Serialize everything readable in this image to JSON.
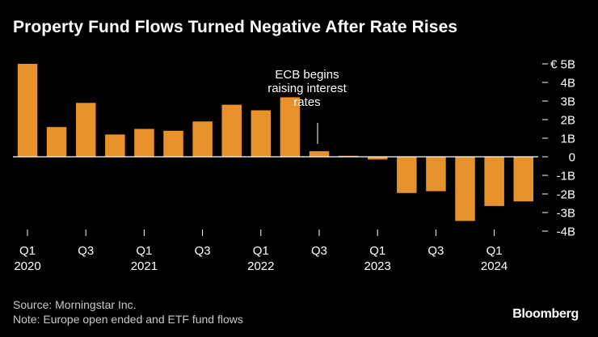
{
  "title": "Property Fund Flows Turned Negative After Rate Rises",
  "source": "Source: Morningstar Inc.",
  "note": "Note: Europe open ended and ETF fund flows",
  "logo": "Bloomberg",
  "colors": {
    "bar": "#e8912a",
    "background": "#000000",
    "text": "#ffffff",
    "zero_line": "#ffffff",
    "tick": "#ffffff"
  },
  "chart_data": {
    "type": "bar",
    "title": "Property Fund Flows Turned Negative After Rate Rises",
    "ylabel": "",
    "xlabel": "",
    "unit": "€ billions",
    "ylim": [
      -4,
      5
    ],
    "yticks": [
      5,
      4,
      3,
      2,
      1,
      0,
      -1,
      -2,
      -3,
      -4
    ],
    "ytick_labels": [
      "€ 5B",
      "4B",
      "3B",
      "2B",
      "1B",
      "0",
      "-1B",
      "-2B",
      "-3B",
      "-4B"
    ],
    "categories": [
      "Q1 2020",
      "Q2 2020",
      "Q3 2020",
      "Q4 2020",
      "Q1 2021",
      "Q2 2021",
      "Q3 2021",
      "Q4 2021",
      "Q1 2022",
      "Q2 2022",
      "Q3 2022",
      "Q4 2022",
      "Q1 2023",
      "Q2 2023",
      "Q3 2023",
      "Q4 2023",
      "Q1 2024",
      "Q2 2024"
    ],
    "values": [
      5.0,
      1.6,
      2.9,
      1.2,
      1.5,
      1.4,
      1.9,
      2.8,
      2.5,
      3.2,
      0.3,
      0.05,
      -0.15,
      -1.95,
      -1.85,
      -3.45,
      -2.65,
      -2.4
    ],
    "x_tick_labels": [
      {
        "index": 0,
        "line1": "Q1",
        "line2": "2020"
      },
      {
        "index": 2,
        "line1": "Q3",
        "line2": ""
      },
      {
        "index": 4,
        "line1": "Q1",
        "line2": "2021"
      },
      {
        "index": 6,
        "line1": "Q3",
        "line2": ""
      },
      {
        "index": 8,
        "line1": "Q1",
        "line2": "2022"
      },
      {
        "index": 10,
        "line1": "Q3",
        "line2": ""
      },
      {
        "index": 12,
        "line1": "Q1",
        "line2": "2023"
      },
      {
        "index": 14,
        "line1": "Q3",
        "line2": ""
      },
      {
        "index": 16,
        "line1": "Q1",
        "line2": "2024"
      }
    ],
    "annotation": {
      "lines": [
        "ECB begins",
        "raising interest",
        "rates"
      ],
      "index": 10
    },
    "grid": false,
    "legend": "none"
  }
}
